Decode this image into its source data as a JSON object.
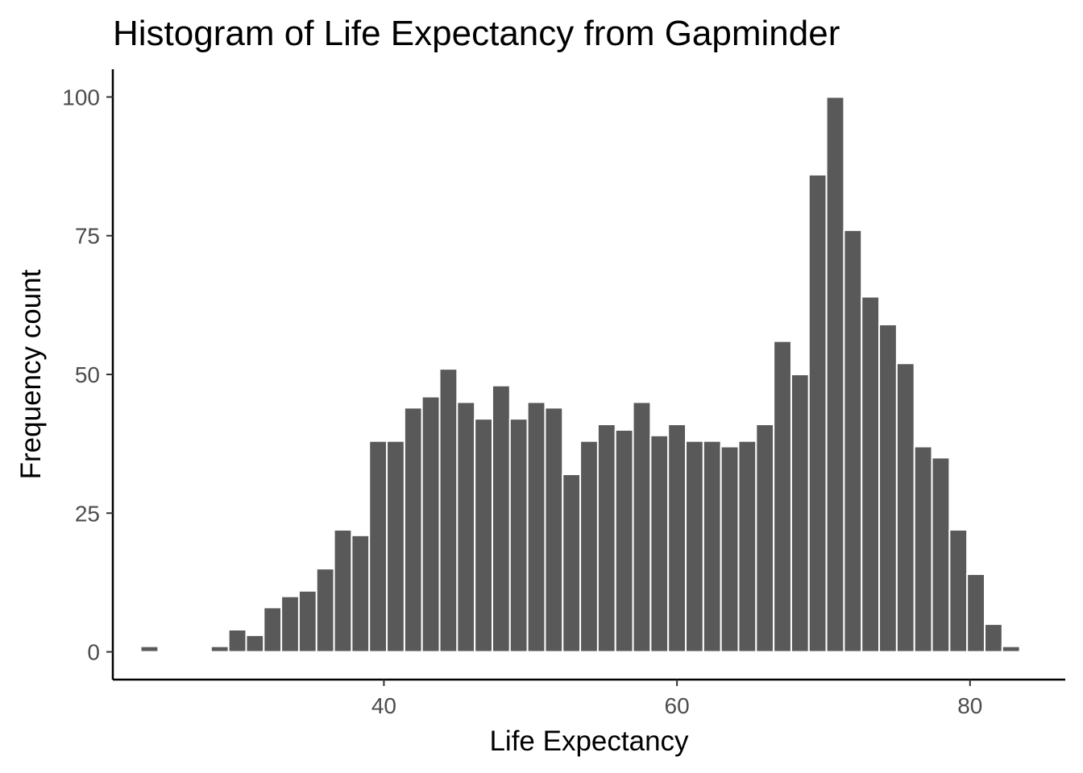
{
  "chart_data": {
    "type": "bar",
    "title": "Histogram of Life Expectancy from Gapminder",
    "xlabel": "Life Expectancy",
    "ylabel": "Frequency count",
    "xlim": [
      21.5,
      86.5
    ],
    "ylim": [
      -5,
      105
    ],
    "bin_width": 1.2,
    "x_ticks": [
      40,
      60,
      80
    ],
    "y_ticks": [
      0,
      25,
      50,
      75,
      100
    ],
    "bin_centers": [
      24.0,
      25.2,
      26.4,
      27.6,
      28.8,
      30.0,
      31.2,
      32.4,
      33.6,
      34.8,
      36.0,
      37.2,
      38.4,
      39.6,
      40.8,
      42.0,
      43.2,
      44.4,
      45.6,
      46.8,
      48.0,
      49.2,
      50.4,
      51.6,
      52.8,
      54.0,
      55.2,
      56.4,
      57.6,
      58.8,
      60.0,
      61.2,
      62.4,
      63.6,
      64.8,
      66.0,
      67.2,
      68.4,
      69.6,
      70.8,
      72.0,
      73.2,
      74.4,
      75.6,
      76.8,
      78.0,
      79.2,
      80.4,
      81.6,
      82.8,
      84.0
    ],
    "values": [
      1,
      0,
      0,
      0,
      1,
      4,
      3,
      8,
      10,
      11,
      15,
      22,
      21,
      38,
      38,
      44,
      46,
      51,
      45,
      42,
      48,
      42,
      45,
      44,
      32,
      38,
      41,
      40,
      45,
      39,
      41,
      38,
      38,
      37,
      38,
      41,
      56,
      50,
      86,
      100,
      76,
      64,
      59,
      52,
      37,
      35,
      22,
      14,
      5,
      1,
      0
    ],
    "bar_color": "#595959",
    "grid": false,
    "legend": "none"
  }
}
